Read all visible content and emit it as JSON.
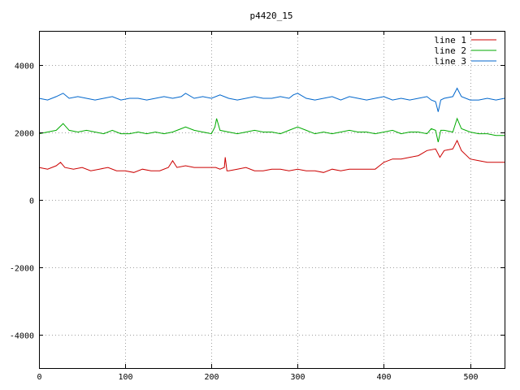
{
  "chart_data": {
    "type": "line",
    "title": "p4420_15",
    "xlim": [
      0,
      540
    ],
    "ylim": [
      -5000,
      5000
    ],
    "x_ticks": [
      0,
      100,
      200,
      300,
      400,
      500
    ],
    "y_ticks": [
      -4000,
      -2000,
      0,
      2000,
      4000
    ],
    "grid": true,
    "legend_position": "top-right",
    "series": [
      {
        "name": "line 1",
        "color": "#cc0000",
        "x": [
          0,
          10,
          20,
          25,
          30,
          40,
          50,
          60,
          70,
          80,
          90,
          100,
          110,
          120,
          130,
          140,
          150,
          155,
          160,
          170,
          180,
          190,
          200,
          205,
          210,
          215,
          216,
          218,
          220,
          230,
          240,
          250,
          260,
          270,
          280,
          290,
          300,
          310,
          320,
          330,
          340,
          350,
          360,
          370,
          380,
          390,
          395,
          400,
          410,
          420,
          430,
          440,
          450,
          460,
          465,
          470,
          480,
          485,
          490,
          500,
          510,
          520,
          530,
          540
        ],
        "y": [
          950,
          900,
          1000,
          1100,
          950,
          900,
          950,
          850,
          900,
          950,
          850,
          850,
          800,
          900,
          850,
          850,
          950,
          1150,
          950,
          1000,
          950,
          950,
          950,
          950,
          900,
          950,
          1250,
          850,
          850,
          900,
          950,
          850,
          850,
          900,
          900,
          850,
          900,
          850,
          850,
          800,
          900,
          850,
          900,
          900,
          900,
          900,
          1000,
          1100,
          1200,
          1200,
          1250,
          1300,
          1450,
          1500,
          1250,
          1450,
          1500,
          1750,
          1450,
          1200,
          1150,
          1100,
          1100,
          1100
        ]
      },
      {
        "name": "line 2",
        "color": "#00aa00",
        "x": [
          0,
          10,
          20,
          28,
          35,
          45,
          55,
          65,
          75,
          85,
          95,
          105,
          115,
          125,
          135,
          145,
          155,
          165,
          170,
          180,
          190,
          200,
          204,
          206,
          210,
          220,
          230,
          240,
          250,
          260,
          270,
          280,
          290,
          300,
          310,
          320,
          330,
          340,
          350,
          360,
          370,
          380,
          390,
          400,
          410,
          420,
          430,
          440,
          450,
          455,
          460,
          463,
          466,
          470,
          480,
          485,
          490,
          500,
          510,
          520,
          530,
          540
        ],
        "y": [
          1950,
          2000,
          2050,
          2250,
          2050,
          2000,
          2050,
          2000,
          1950,
          2050,
          1950,
          1950,
          2000,
          1950,
          2000,
          1950,
          2000,
          2100,
          2150,
          2050,
          2000,
          1950,
          2150,
          2400,
          2050,
          2000,
          1950,
          2000,
          2050,
          2000,
          2000,
          1950,
          2050,
          2150,
          2050,
          1950,
          2000,
          1950,
          2000,
          2050,
          2000,
          2000,
          1950,
          2000,
          2050,
          1950,
          2000,
          2000,
          1950,
          2100,
          2050,
          1700,
          2050,
          2050,
          2000,
          2400,
          2100,
          2000,
          1950,
          1950,
          1900,
          1900
        ]
      },
      {
        "name": "line 3",
        "color": "#0066cc",
        "x": [
          0,
          10,
          20,
          28,
          35,
          45,
          55,
          65,
          75,
          85,
          95,
          105,
          115,
          125,
          135,
          145,
          155,
          165,
          170,
          180,
          190,
          200,
          210,
          220,
          230,
          240,
          250,
          260,
          270,
          280,
          290,
          295,
          300,
          310,
          320,
          330,
          340,
          350,
          360,
          370,
          380,
          390,
          400,
          410,
          420,
          430,
          440,
          450,
          455,
          460,
          463,
          466,
          470,
          480,
          485,
          490,
          500,
          510,
          520,
          530,
          540
        ],
        "y": [
          3000,
          2950,
          3050,
          3150,
          3000,
          3050,
          3000,
          2950,
          3000,
          3050,
          2950,
          3000,
          3000,
          2950,
          3000,
          3050,
          3000,
          3050,
          3150,
          3000,
          3050,
          3000,
          3100,
          3000,
          2950,
          3000,
          3050,
          3000,
          3000,
          3050,
          3000,
          3100,
          3150,
          3000,
          2950,
          3000,
          3050,
          2950,
          3050,
          3000,
          2950,
          3000,
          3050,
          2950,
          3000,
          2950,
          3000,
          3050,
          2950,
          2900,
          2600,
          2950,
          3000,
          3050,
          3300,
          3050,
          2950,
          2950,
          3000,
          2950,
          3000
        ]
      }
    ]
  }
}
